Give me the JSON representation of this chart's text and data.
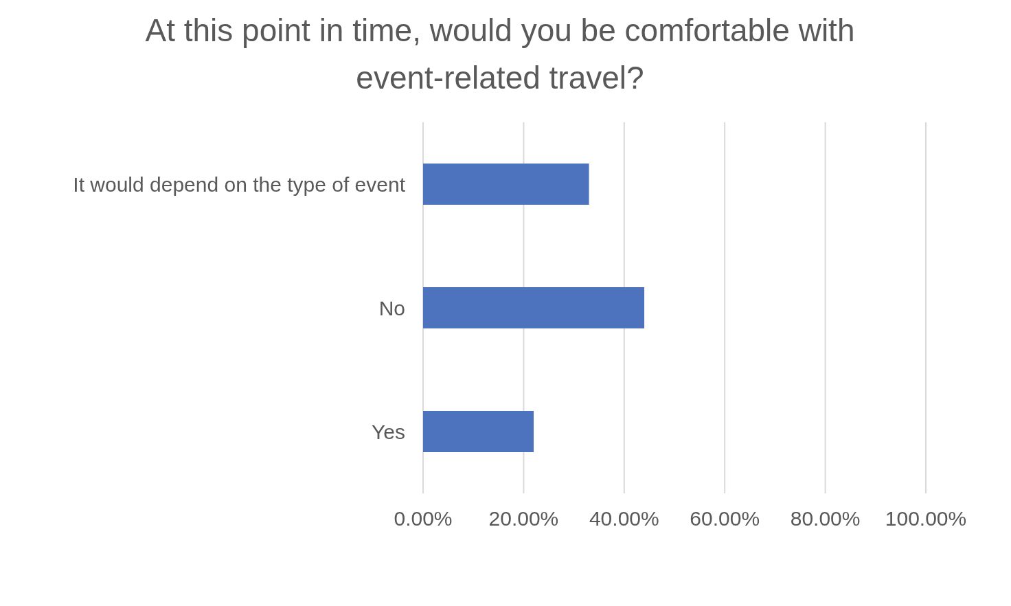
{
  "chart_data": {
    "type": "bar",
    "orientation": "horizontal",
    "title": "At this point in time, would you be comfortable with event-related travel?",
    "categories": [
      "It would depend on the type of event",
      "No",
      "Yes"
    ],
    "values": [
      33,
      44,
      22
    ],
    "color": "#4e73be",
    "xlim": [
      0,
      100
    ],
    "xticks": [
      {
        "value": 0,
        "label": "0.00%"
      },
      {
        "value": 20,
        "label": "20.00%"
      },
      {
        "value": 40,
        "label": "40.00%"
      },
      {
        "value": 60,
        "label": "60.00%"
      },
      {
        "value": 80,
        "label": "80.00%"
      },
      {
        "value": 100,
        "label": "100.00%"
      }
    ],
    "grid": "x"
  }
}
